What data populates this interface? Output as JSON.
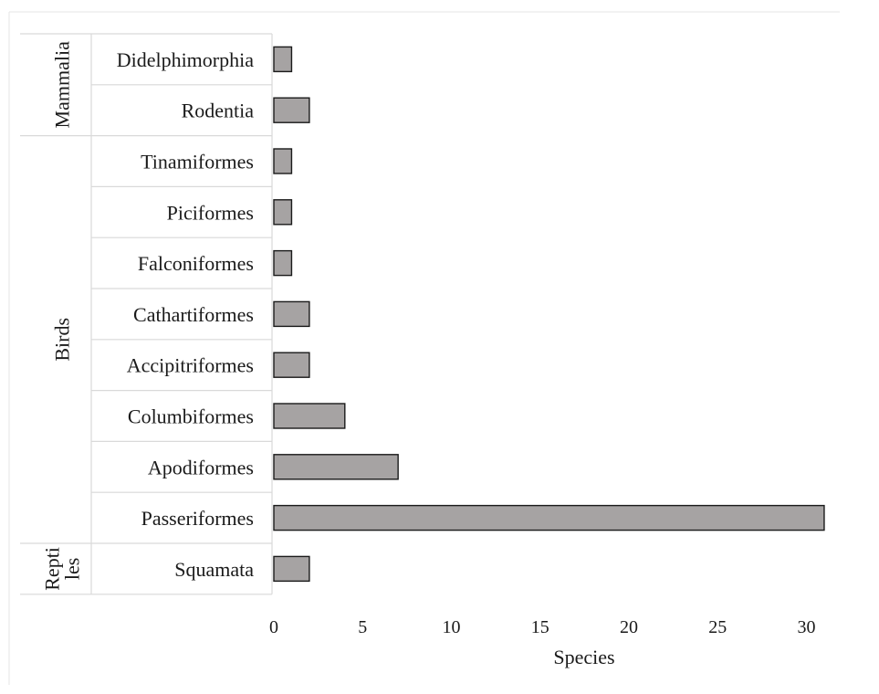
{
  "chart_data": {
    "type": "bar",
    "orientation": "horizontal",
    "title": "",
    "xlabel": "Species",
    "ylabel": "",
    "xlim": [
      0,
      31
    ],
    "xticks": [
      0,
      5,
      10,
      15,
      20,
      25,
      30
    ],
    "grid": false,
    "legend": "none",
    "bar_color": "#a6a3a3",
    "bar_edge_color": "#1a1a1a",
    "groups": [
      {
        "name": "Mammalia",
        "categories": [
          "Didelphimorphia",
          "Rodentia"
        ]
      },
      {
        "name": "Birds",
        "categories": [
          "Tinamiformes",
          "Piciformes",
          "Falconiformes",
          "Cathartiformes",
          "Accipitriformes",
          "Columbiformes",
          "Apodiformes",
          "Passeriformes"
        ]
      },
      {
        "name": "Repti les",
        "categories": [
          "Squamata"
        ]
      }
    ],
    "categories": [
      "Didelphimorphia",
      "Rodentia",
      "Tinamiformes",
      "Piciformes",
      "Falconiformes",
      "Cathartiformes",
      "Accipitriformes",
      "Columbiformes",
      "Apodiformes",
      "Passeriformes",
      "Squamata"
    ],
    "values": [
      1,
      2,
      1,
      1,
      1,
      2,
      2,
      4,
      7,
      31,
      2
    ]
  }
}
